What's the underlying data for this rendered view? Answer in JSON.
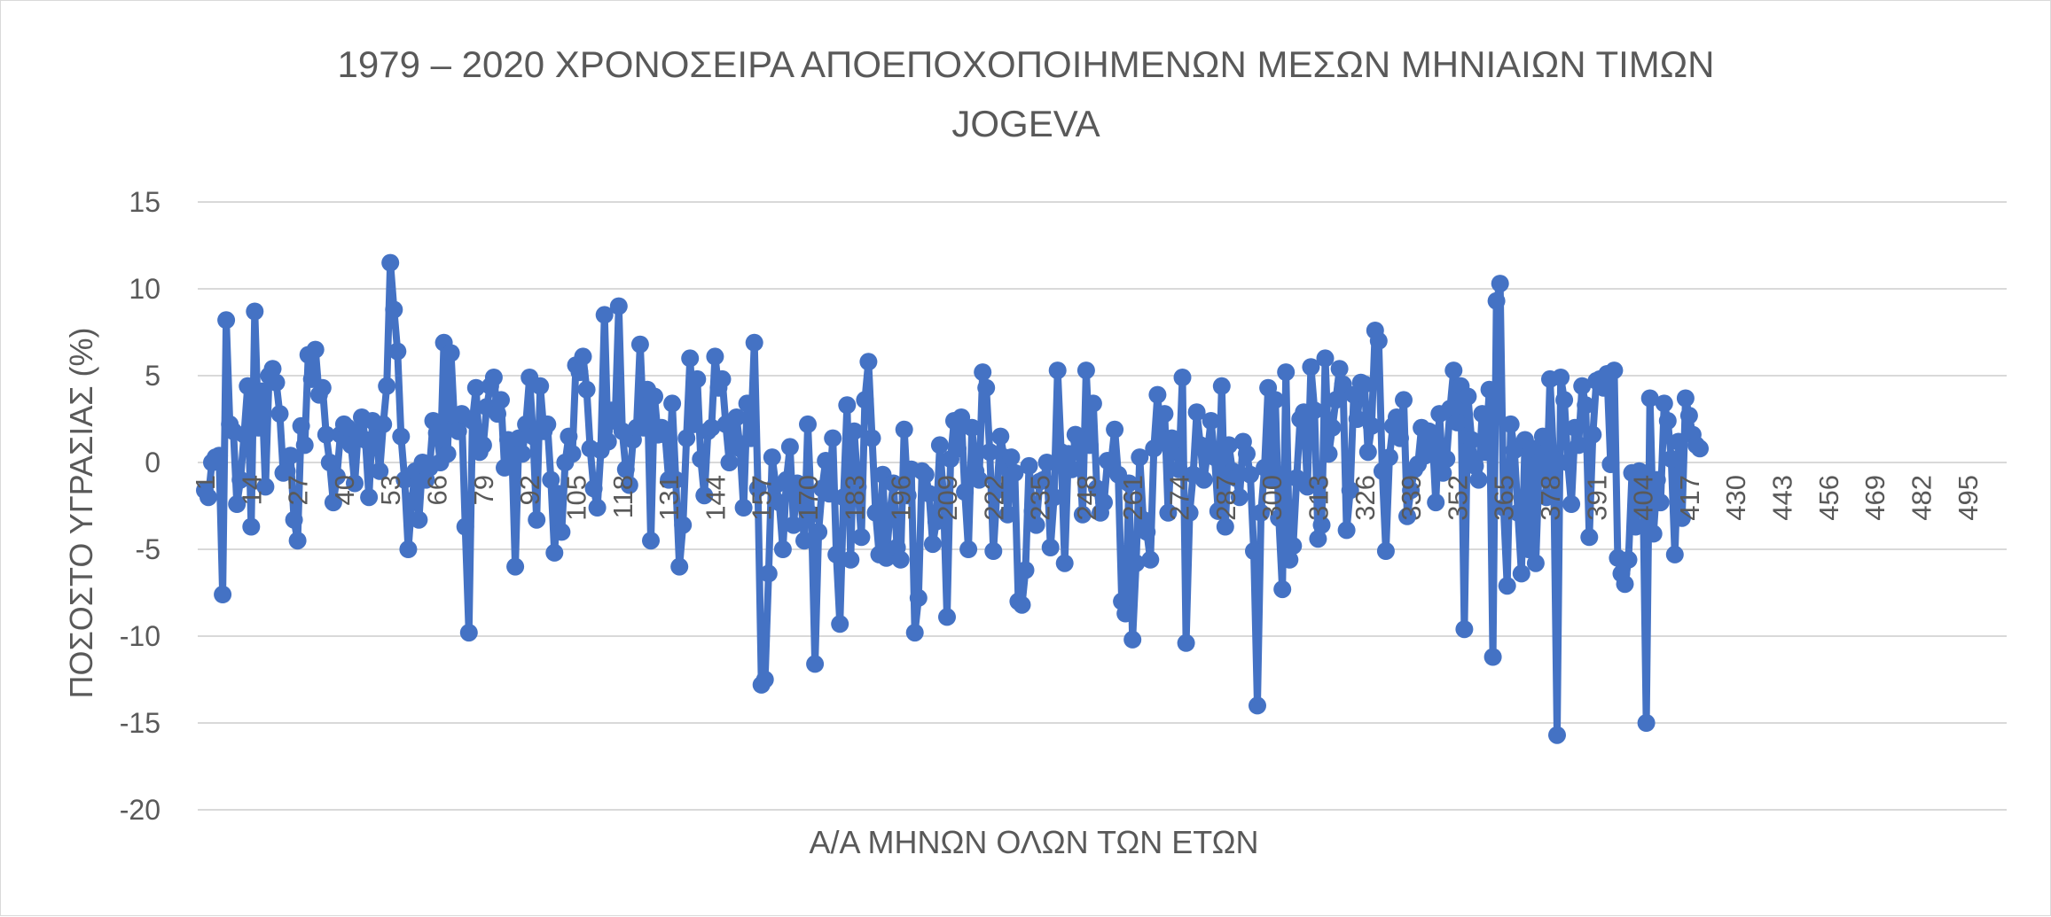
{
  "chart_data": {
    "type": "line",
    "title_line1": "1979 – 2020 ΧΡΟΝΟΣΕΙΡΑ ΑΠΟΕΠΟΧΟΠΟΙΗΜΕΝΩΝ ΜΕΣΩΝ ΜΗΝΙΑΙΩΝ ΤΙΜΩΝ",
    "title_line2": "JOGEVA",
    "xlabel": "Α/Α ΜΗΝΩΝ ΟΛΩΝ ΤΩΝ ΕΤΩΝ",
    "ylabel": "ΠΟΣΟΣΤΟ ΥΓΡΑΣΙΑΣ (%)",
    "ylim": [
      -20,
      15
    ],
    "y_ticks": [
      "15",
      "10",
      "5",
      "0",
      "-5",
      "-10",
      "-15",
      "-20"
    ],
    "x_ticks": [
      "1",
      "14",
      "27",
      "40",
      "53",
      "66",
      "79",
      "92",
      "105",
      "118",
      "131",
      "144",
      "157",
      "170",
      "183",
      "196",
      "209",
      "222",
      "235",
      "248",
      "261",
      "274",
      "287",
      "300",
      "313",
      "326",
      "339",
      "352",
      "365",
      "378",
      "391",
      "404",
      "417",
      "430",
      "443",
      "456",
      "469",
      "482",
      "495"
    ],
    "xlim": [
      1,
      504
    ],
    "grid": true,
    "series_color": "#4472C4",
    "series": [
      {
        "values": [
          -1.6,
          -2.0,
          0.0,
          0.3,
          0.4,
          -7.6,
          8.2,
          2.2,
          1.8,
          -2.4,
          -1.0,
          1.6,
          4.4,
          -3.7,
          8.7,
          2.0,
          4.1,
          -1.4,
          5.0,
          5.4,
          4.6,
          2.8,
          -0.6,
          -0.5,
          0.4,
          -3.3,
          -4.5,
          2.1,
          1.0,
          6.2,
          4.8,
          6.5,
          3.9,
          4.3,
          1.6,
          0.0,
          -2.3,
          -0.8,
          1.6,
          2.2,
          2.0,
          1.0,
          -1.2,
          1.8,
          2.6,
          1.3,
          -2.0,
          2.4,
          1.4,
          -0.5,
          2.2,
          4.4,
          11.5,
          8.8,
          6.4,
          1.5,
          -1.0,
          -5.0,
          -2.2,
          -0.5,
          -3.3,
          0.0,
          -1.0,
          -0.3,
          2.4,
          1.7,
          0.0,
          6.9,
          0.5,
          6.3,
          2.0,
          1.8,
          2.8,
          -3.7,
          -9.8,
          2.4,
          4.3,
          0.6,
          1.0,
          3.2,
          4.4,
          4.9,
          2.8,
          3.6,
          -0.3,
          1.3,
          1.0,
          -6.0,
          1.4,
          0.5,
          2.2,
          4.9,
          1.5,
          -3.3,
          4.4,
          1.8,
          2.2,
          -1.0,
          -5.2,
          -1.8,
          -4.0,
          0.0,
          1.5,
          0.5,
          5.6,
          5.2,
          6.1,
          4.2,
          0.8,
          -1.5,
          -2.6,
          0.7,
          8.5,
          1.2,
          3.0,
          2.4,
          9.0,
          1.8,
          -0.4,
          -1.3,
          1.3,
          2.0,
          6.8,
          2.0,
          4.2,
          -4.5,
          3.8,
          1.6,
          2.0,
          1.6,
          -1.0,
          3.4,
          -1.0,
          -6.0,
          -3.6,
          1.4,
          6.0,
          2.2,
          4.8,
          0.2,
          -1.9,
          1.8,
          2.0,
          6.1,
          4.3,
          4.8,
          2.2,
          0.0,
          1.5,
          2.6,
          0.8,
          -2.6,
          3.4,
          1.4,
          6.9,
          -1.5,
          -12.8,
          -12.5,
          -6.4,
          0.3,
          -1.3,
          -2.3,
          -5.0,
          -1.0,
          0.9,
          -3.6,
          -1.2,
          -2.0,
          -4.5,
          2.2,
          -3.0,
          -11.6,
          -4.0,
          -1.5,
          0.1,
          -1.8,
          1.4,
          -5.3,
          -9.3,
          -2.0,
          3.3,
          -5.6,
          1.8,
          -1.4,
          -4.3,
          3.6,
          5.8,
          1.4,
          -2.9,
          -5.3,
          -0.7,
          -5.5,
          -2.9,
          -1.2,
          -4.9,
          -5.6,
          1.9,
          -1.9,
          -0.4,
          -9.8,
          -7.8,
          -0.5,
          -0.7,
          -1.8,
          -4.7,
          -3.4,
          1.0,
          -1.9,
          -8.9,
          0.2,
          2.4,
          0.8,
          2.6,
          -1.7,
          -5.0,
          2.0,
          -0.5,
          -1.0,
          5.2,
          4.3,
          0.6,
          -5.1,
          -1.6,
          1.5,
          0.3,
          -3.0,
          0.3,
          -0.6,
          -8.0,
          -8.2,
          -6.2,
          -0.2,
          -2.8,
          -3.6,
          -1.1,
          -1.0,
          0.0,
          -4.9,
          -2.0,
          5.3,
          0.6,
          -5.8,
          0.5,
          -0.4,
          1.6,
          1.3,
          -3.0,
          5.3,
          1.0,
          3.4,
          -1.5,
          -2.9,
          -2.3,
          0.1,
          0.0,
          1.9,
          -0.7,
          -8.0,
          -8.7,
          -1.2,
          -10.2,
          -5.8,
          0.3,
          -3.3,
          -4.0,
          -5.6,
          0.8,
          3.9,
          1.2,
          2.8,
          -2.9,
          1.4,
          1.3,
          -0.4,
          4.9,
          -10.4,
          -2.9,
          -0.7,
          2.9,
          1.0,
          -1.0,
          0.6,
          2.4,
          0.3,
          -2.8,
          4.4,
          -3.7,
          1.0,
          -0.5,
          -0.9,
          -2.0,
          1.2,
          0.5,
          -0.7,
          -5.1,
          -14.0,
          -2.9,
          -0.3,
          4.3,
          -1.0,
          3.6,
          -3.2,
          -7.3,
          5.2,
          -5.6,
          -4.8,
          -0.9,
          2.5,
          2.9,
          -1.4,
          5.5,
          3.0,
          -4.4,
          -3.6,
          6.0,
          0.5,
          2.0,
          3.6,
          5.4,
          4.5,
          -3.9,
          -1.6,
          3.9,
          2.5,
          4.6,
          4.5,
          0.6,
          2.1,
          7.6,
          7.0,
          -0.5,
          -5.1,
          0.3,
          2.1,
          2.6,
          1.4,
          3.6,
          -3.1,
          -1.6,
          -0.4,
          -0.1,
          2.0,
          0.4,
          1.8,
          1.7,
          -2.3,
          2.8,
          -0.6,
          0.2,
          3.1,
          5.3,
          2.3,
          4.4,
          -9.6,
          3.8,
          1.3,
          -0.2,
          -1.0,
          2.8,
          0.6,
          4.2,
          -11.2,
          9.3,
          10.3,
          -2.6,
          -7.1,
          2.2,
          0.7,
          -2.9,
          -6.4,
          1.3,
          -5.0,
          0.8,
          -5.8,
          0.0,
          1.5,
          -2.0,
          4.8,
          0.2,
          -15.7,
          4.9,
          3.6,
          0.0,
          -2.4,
          2.0,
          1.0,
          4.4,
          3.3,
          -4.3,
          1.6,
          4.7,
          4.8,
          4.3,
          5.1,
          -0.1,
          5.3,
          -5.5,
          -6.4,
          -7.0,
          -5.6,
          -0.6,
          -3.7,
          -0.5,
          -0.6,
          -15.0,
          3.7,
          -4.1,
          -1.0,
          -2.3,
          3.4,
          2.4,
          0.2,
          -5.3,
          1.2,
          -3.2,
          3.7,
          2.7,
          1.6,
          1.0,
          0.8
        ],
        "note_x_step": 1
      }
    ]
  }
}
